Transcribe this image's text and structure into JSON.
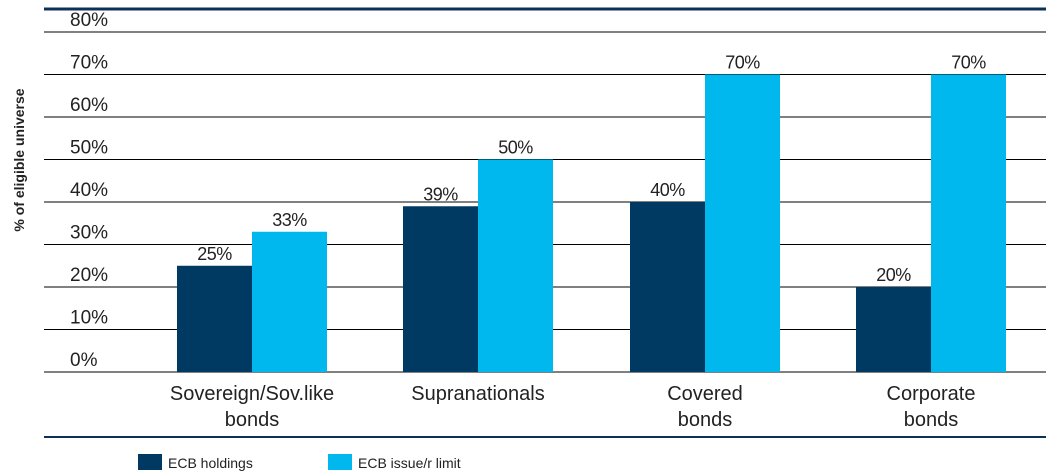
{
  "chart_data": {
    "type": "bar",
    "ylabel": "% of eligible universe",
    "ylim": [
      0,
      80
    ],
    "yticks": [
      "80%",
      "70%",
      "60%",
      "50%",
      "40%",
      "30%",
      "20%",
      "10%",
      "0%"
    ],
    "ytick_values": [
      80,
      70,
      60,
      50,
      40,
      30,
      20,
      10,
      0
    ],
    "categories": [
      [
        "Sovereign/Sov.like",
        "bonds"
      ],
      [
        "Supranationals"
      ],
      [
        "Covered",
        "bonds"
      ],
      [
        "Corporate",
        "bonds"
      ]
    ],
    "series": [
      {
        "name": "ECB holdings",
        "values": [
          25,
          39,
          40,
          20
        ],
        "labels": [
          "25%",
          "39%",
          "40%",
          "20%"
        ]
      },
      {
        "name": "ECB issue/r limit",
        "values": [
          33,
          50,
          70,
          70
        ],
        "labels": [
          "33%",
          "50%",
          "70%",
          "70%"
        ]
      }
    ],
    "colors": [
      "#003a63",
      "#00b8ee"
    ],
    "grid": true,
    "legend": "bottom-left"
  }
}
